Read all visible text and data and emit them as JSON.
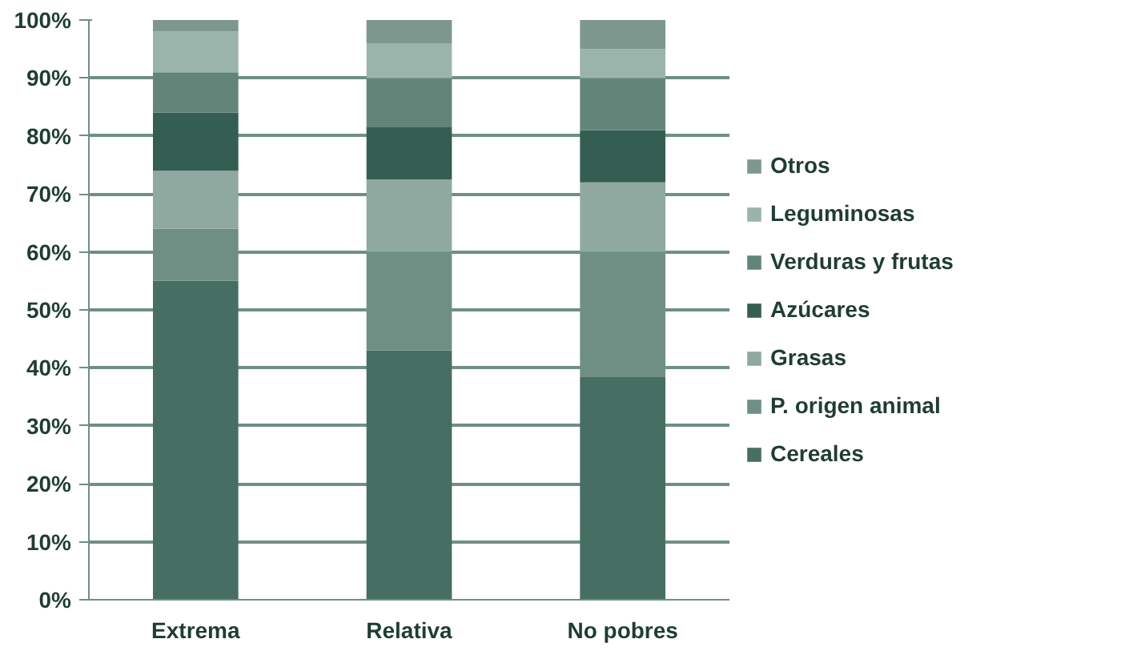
{
  "chart_data": {
    "type": "bar",
    "stacked": true,
    "categories": [
      "Extrema",
      "Relativa",
      "No pobres"
    ],
    "series": [
      {
        "name": "Cereales",
        "color": "#476e62",
        "values": [
          55,
          43,
          38.5
        ]
      },
      {
        "name": "P. origen animal",
        "color": "#6f8f84",
        "values": [
          9,
          17,
          21.5
        ]
      },
      {
        "name": "Grasas",
        "color": "#8fa8a0",
        "values": [
          10,
          12.5,
          12
        ]
      },
      {
        "name": "Azúcares",
        "color": "#345e52",
        "values": [
          10,
          9,
          9
        ]
      },
      {
        "name": "Verduras y frutas",
        "color": "#62857a",
        "values": [
          7,
          8.5,
          9
        ]
      },
      {
        "name": "Leguminosas",
        "color": "#9ab3ab",
        "values": [
          7,
          6,
          5
        ]
      },
      {
        "name": "Otros",
        "color": "#7d978e",
        "values": [
          2,
          4,
          5
        ]
      }
    ],
    "ylim": [
      0,
      100
    ],
    "yticks": [
      {
        "value": 0,
        "label": "0%"
      },
      {
        "value": 10,
        "label": "10%"
      },
      {
        "value": 20,
        "label": "20%"
      },
      {
        "value": 30,
        "label": "30%"
      },
      {
        "value": 40,
        "label": "40%"
      },
      {
        "value": 50,
        "label": "50%"
      },
      {
        "value": 60,
        "label": "60%"
      },
      {
        "value": 70,
        "label": "70%"
      },
      {
        "value": 80,
        "label": "80%"
      },
      {
        "value": 90,
        "label": "90%"
      },
      {
        "value": 100,
        "label": "100%"
      }
    ],
    "grid": "y",
    "legend": "right"
  }
}
